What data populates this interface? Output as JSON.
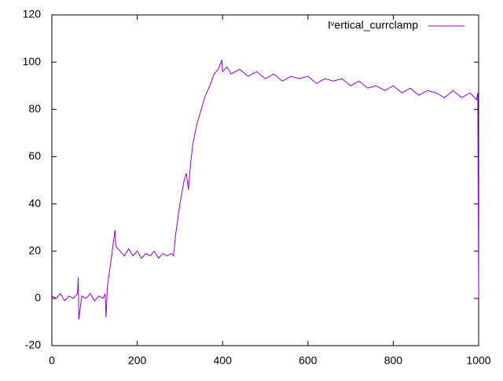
{
  "chart_data": {
    "type": "line",
    "x": [
      0,
      10,
      20,
      30,
      40,
      50,
      60,
      62,
      63,
      70,
      80,
      90,
      100,
      110,
      120,
      125,
      127,
      130,
      140,
      148,
      150,
      160,
      170,
      180,
      190,
      200,
      210,
      220,
      230,
      240,
      250,
      260,
      270,
      280,
      285,
      290,
      300,
      310,
      315,
      320,
      325,
      330,
      340,
      350,
      360,
      370,
      380,
      390,
      398,
      400,
      410,
      420,
      440,
      460,
      480,
      500,
      520,
      540,
      560,
      580,
      600,
      620,
      640,
      660,
      680,
      700,
      720,
      740,
      760,
      780,
      800,
      820,
      840,
      860,
      880,
      900,
      920,
      940,
      960,
      980,
      995,
      998,
      1000
    ],
    "series": [
      {
        "name": "Iᵛertical_currclamp",
        "color": "#9400d3",
        "values": [
          1,
          0,
          2,
          -1,
          1,
          0,
          2,
          9,
          -9,
          1,
          0,
          2,
          -1,
          1,
          0,
          2,
          -8,
          5,
          18,
          29,
          22,
          20,
          18,
          21,
          18,
          20,
          17,
          19,
          18,
          20,
          17,
          19,
          18,
          19,
          18,
          27,
          40,
          50,
          53,
          46,
          57,
          65,
          74,
          80,
          86,
          90,
          95,
          97,
          101,
          96,
          98,
          95,
          97,
          94,
          96,
          93,
          95,
          92,
          94,
          93,
          94,
          91,
          93,
          92,
          93,
          90,
          92,
          89,
          90,
          88,
          90,
          87,
          89,
          86,
          88,
          87,
          85,
          88,
          85,
          87,
          84,
          87,
          0
        ]
      }
    ],
    "xlim": [
      0,
      1000
    ],
    "xticks": [
      0,
      200,
      400,
      600,
      800,
      1000
    ],
    "ylim": [
      -20,
      120
    ],
    "yticks": [
      -20,
      0,
      20,
      40,
      60,
      80,
      100,
      120
    ],
    "legend": "top-right"
  }
}
